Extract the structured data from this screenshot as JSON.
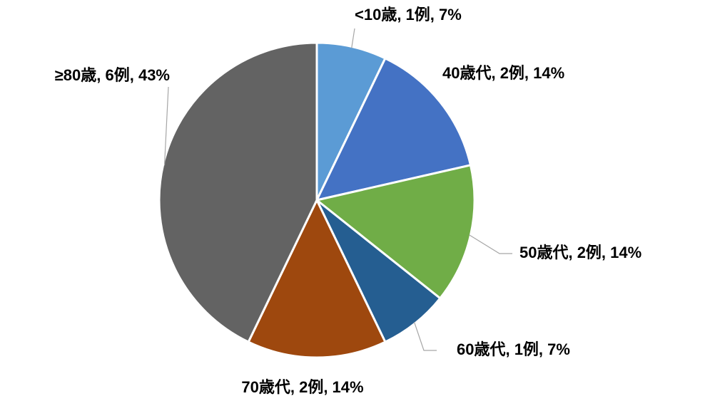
{
  "chart_data": {
    "type": "pie",
    "values": [
      1,
      2,
      2,
      1,
      2,
      6
    ],
    "value_labels": [
      "<10歳, 1例, 7%",
      "40歳代, 2例, 14%",
      "50歳代, 2例, 14%",
      "60歳代, 1例, 7%",
      "70歳代, 2例, 14%",
      "≥80歳, 6例, 43%"
    ],
    "colors": [
      "#5b9bd5",
      "#4472c4",
      "#70ad47",
      "#255e91",
      "#9e480e",
      "#636363"
    ]
  }
}
